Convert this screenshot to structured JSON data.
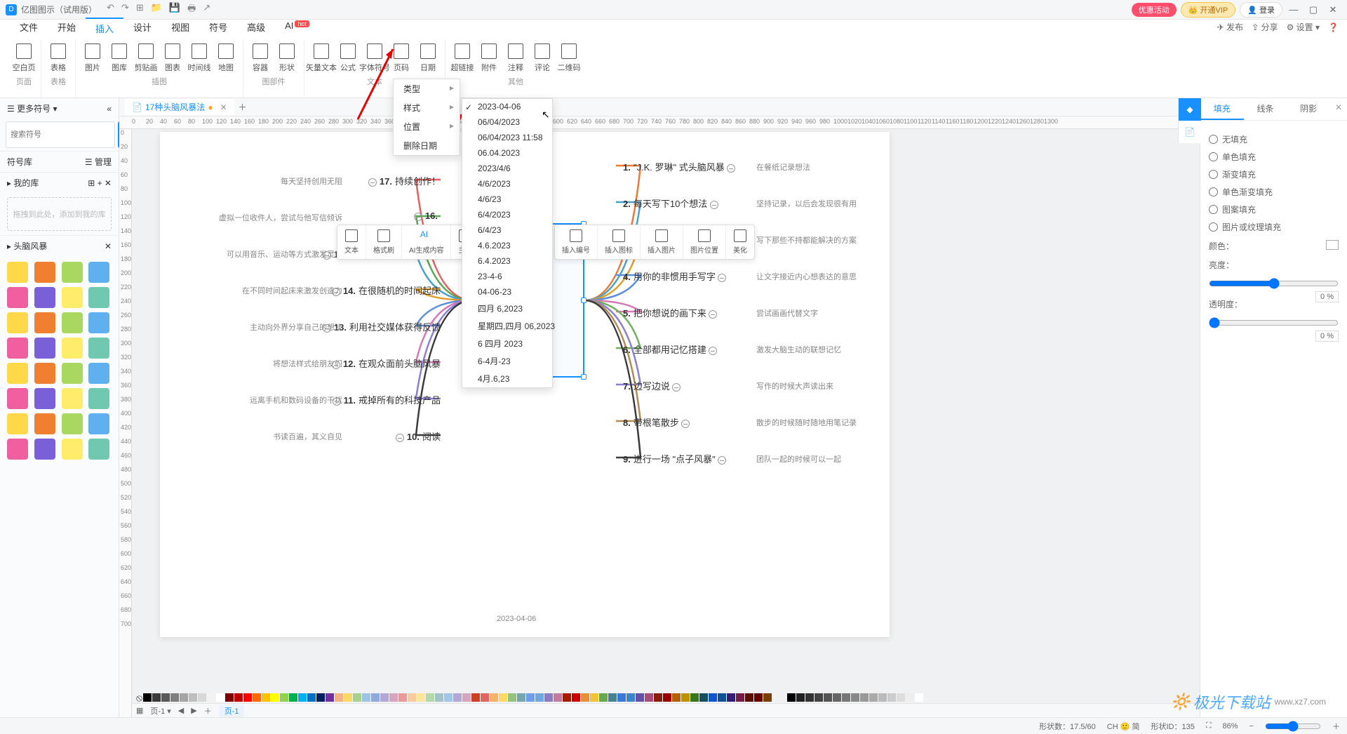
{
  "app": {
    "title": "亿图图示（试用版）"
  },
  "titlebar_pills": {
    "promo": "优惠活动",
    "vip": "👑 开通VIP",
    "login": "👤 登录"
  },
  "menubar": {
    "tabs": [
      "文件",
      "开始",
      "插入",
      "设计",
      "视图",
      "符号",
      "高级",
      "AI"
    ],
    "active_index": 2,
    "ai_badge": "hot",
    "right": {
      "publish": "发布",
      "share": "分享",
      "settings": "设置"
    }
  },
  "ribbon": {
    "groups": [
      {
        "name": "页面",
        "items": [
          {
            "label": "空白页"
          }
        ]
      },
      {
        "name": "表格",
        "items": [
          {
            "label": "表格"
          }
        ]
      },
      {
        "name": "插图",
        "items": [
          {
            "label": "图片"
          },
          {
            "label": "图库"
          },
          {
            "label": "剪贴画"
          },
          {
            "label": "图表"
          },
          {
            "label": "时间线"
          },
          {
            "label": "地图"
          }
        ]
      },
      {
        "name": "图部件",
        "items": [
          {
            "label": "容器"
          },
          {
            "label": "形状"
          }
        ]
      },
      {
        "name": "文本",
        "items": [
          {
            "label": "矢量文本"
          },
          {
            "label": "公式"
          },
          {
            "label": "字体符号"
          },
          {
            "label": "页码"
          },
          {
            "label": "日期"
          }
        ]
      },
      {
        "name": "其他",
        "items": [
          {
            "label": "超链接"
          },
          {
            "label": "附件"
          },
          {
            "label": "注释"
          },
          {
            "label": "评论"
          },
          {
            "label": "二维码"
          }
        ]
      }
    ]
  },
  "date_menu": {
    "items": [
      {
        "label": "类型",
        "sub": true
      },
      {
        "label": "样式",
        "sub": true
      },
      {
        "label": "位置",
        "sub": true
      },
      {
        "label": "删除日期"
      }
    ],
    "formats": [
      "2023-04-06",
      "06/04/2023",
      "06/04/2023 11:58",
      "06.04.2023",
      "2023/4/6",
      "4/6/2023",
      "4/6/23",
      "6/4/2023",
      "6/4/23",
      "4.6.2023",
      "6.4.2023",
      "23-4-6",
      "04-06-23",
      "四月 6,2023",
      "星期四,四月 06,2023",
      "6 四月 2023",
      "6-4月-23",
      "4月.6,23"
    ],
    "selected_index": 0
  },
  "leftpanel": {
    "more_symbols": "更多符号",
    "search_ph": "搜索符号",
    "search_btn": "搜索",
    "lib": "符号库",
    "manage": "管理",
    "mylib": "我的库",
    "drop": "拖拽到此处，添加到我的库",
    "category": "头脑风暴"
  },
  "doc": {
    "tab": "17种头脑风暴法",
    "modified": true
  },
  "floatbar": {
    "left": [
      {
        "label": "文本"
      },
      {
        "label": "格式刷"
      },
      {
        "label": "AI生成内容",
        "ai": true
      },
      {
        "label": "主题"
      },
      {
        "label": "子主"
      }
    ],
    "right": [
      {
        "label": "插入编号"
      },
      {
        "label": "插入图标"
      },
      {
        "label": "插入图片"
      },
      {
        "label": "图片位置"
      },
      {
        "label": "美化"
      }
    ]
  },
  "mindmap": {
    "date_footer": "2023-04-06",
    "left_nodes": [
      {
        "n": "17.",
        "t": "持续创作！",
        "note": "每天坚持创用无阻"
      },
      {
        "n": "16.",
        "t": "",
        "note": "虚拟一位收件人，尝试与他写信倾诉"
      },
      {
        "n": "15.",
        "t": "用完全不同的方式创造",
        "note": "可以用音乐、运动等方式激发灵感"
      },
      {
        "n": "14.",
        "t": "在很随机的时间起床",
        "note": "在不同时间起床来激发创造力"
      },
      {
        "n": "13.",
        "t": "利用社交媒体获得反馈",
        "note": "主动向外界分享自己的想法"
      },
      {
        "n": "12.",
        "t": "在观众面前头脑风暴",
        "note": "将想法样式给朋友们"
      },
      {
        "n": "11.",
        "t": "戒掉所有的科技产品",
        "note": "远离手机和数码设备的干扰"
      },
      {
        "n": "10.",
        "t": "阅读",
        "note": "书读百遍，其义自见"
      }
    ],
    "right_nodes": [
      {
        "n": "1.",
        "t": "\"J.K. 罗琳\" 式头脑风暴",
        "note": "在餐纸记录想法"
      },
      {
        "n": "2.",
        "t": "每天写下10个想法",
        "note": "坚持记录，以后会发现很有用"
      },
      {
        "n": "3.",
        "t": "可能的想法",
        "note": "写下那些不持都能解决的方案"
      },
      {
        "n": "4.",
        "t": "用你的非惯用手写字",
        "note": "让文字接近内心想表达的意思"
      },
      {
        "n": "5.",
        "t": "把你想说的画下来",
        "note": "尝试画画代替文字"
      },
      {
        "n": "6.",
        "t": "全部都用记忆搭建",
        "note": "激发大脑生动的联想记忆"
      },
      {
        "n": "7.",
        "t": "边写边说",
        "note": "写作的时候大声读出来"
      },
      {
        "n": "8.",
        "t": "带根笔散步",
        "note": "散步的时候随时随地用笔记录"
      },
      {
        "n": "9.",
        "t": "进行一场 \"点子风暴\"",
        "note": "团队一起的时候可以一起"
      }
    ],
    "branch_colors_left": [
      "#e85d5d",
      "#5ba85b",
      "#4aa3c7",
      "#e0a030",
      "#5b8fd6",
      "#d67ab5",
      "#8a7fd6",
      "#3a3a3a"
    ],
    "branch_colors_right": [
      "#f07830",
      "#4aa3c7",
      "#e0a030",
      "#5b8fd6",
      "#d67ab5",
      "#70b060",
      "#8a7fd6",
      "#b58a50",
      "#3a3a3a"
    ]
  },
  "rightpanel": {
    "tabs": [
      "填充",
      "线条",
      "阴影"
    ],
    "active": 0,
    "opts": [
      "无填充",
      "单色填充",
      "渐变填充",
      "单色渐变填充",
      "图案填充",
      "图片或纹理填充"
    ],
    "color_label": "颜色：",
    "bright": "亮度：",
    "opacity": "透明度：",
    "pct": "0 %"
  },
  "palette_colors": [
    "#000000",
    "#3b3b3b",
    "#595959",
    "#7f7f7f",
    "#a5a5a5",
    "#bfbfbf",
    "#d8d8d8",
    "#f2f2f2",
    "#ffffff",
    "#7f0000",
    "#c00000",
    "#ff0000",
    "#ff6600",
    "#ffc000",
    "#ffff00",
    "#92d050",
    "#00b050",
    "#00b0f0",
    "#0070c0",
    "#002060",
    "#7030a0",
    "#f4b183",
    "#ffd966",
    "#a9d18e",
    "#9dc3e6",
    "#8faadc",
    "#b4a7d6",
    "#d5a6bd",
    "#ea9999",
    "#f9cb9c",
    "#ffe599",
    "#b6d7a8",
    "#a2c4c9",
    "#9fc5e8",
    "#b4a7d6",
    "#d5a6bd",
    "#cc4125",
    "#e06666",
    "#f6b26b",
    "#ffd966",
    "#93c47d",
    "#76a5af",
    "#6d9eeb",
    "#6fa8dc",
    "#8e7cc3",
    "#c27ba0",
    "#a61c00",
    "#cc0000",
    "#e69138",
    "#f1c232",
    "#6aa84f",
    "#45818e",
    "#3c78d8",
    "#3d85c6",
    "#674ea7",
    "#a64d79",
    "#85200c",
    "#990000",
    "#b45f06",
    "#bf9000",
    "#38761d",
    "#134f5c",
    "#1155cc",
    "#0b5394",
    "#351c75",
    "#741b47",
    "#5b0f00",
    "#660000",
    "#783f04"
  ],
  "gray_swatches": [
    "#000",
    "#222",
    "#333",
    "#444",
    "#555",
    "#666",
    "#777",
    "#888",
    "#999",
    "#aaa",
    "#bbb",
    "#ccc",
    "#ddd",
    "#eee",
    "#fff"
  ],
  "pagetabs": {
    "page": "页-1",
    "sheet": "页-1"
  },
  "status": {
    "shapes": "形状数：17.5/60",
    "ime": "CH 🙂 简",
    "shapeid": "形状ID：135",
    "zoom": "86%"
  },
  "watermark": {
    "brand": "极光下载站",
    "url": "www.xz7.com"
  }
}
